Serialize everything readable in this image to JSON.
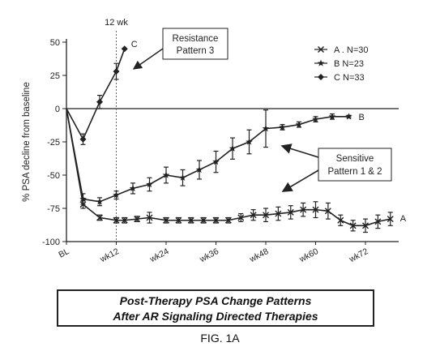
{
  "chart_data": {
    "type": "line",
    "ylabel": "% PSA decline from baseline",
    "xlabel": "",
    "ylim": [
      -100,
      50
    ],
    "yticks": [
      50,
      25,
      0,
      -25,
      -50,
      -75,
      -100
    ],
    "x_tick_labels": [
      {
        "x": 0,
        "label": "BL"
      },
      {
        "x": 12,
        "label": "wk12"
      },
      {
        "x": 24,
        "label": "wk24"
      },
      {
        "x": 36,
        "label": "wk36"
      },
      {
        "x": 48,
        "label": "wk48"
      },
      {
        "x": 60,
        "label": "wk60"
      },
      {
        "x": 72,
        "label": "wk72"
      }
    ],
    "xlim": [
      0,
      80
    ],
    "legend_position": "top-right",
    "reference_line": {
      "x": 12,
      "label": "12 wk"
    },
    "series": [
      {
        "name": "A . N=30",
        "end_label": "A",
        "marker": "x",
        "points": [
          {
            "x": 0,
            "y": 0,
            "err": 0
          },
          {
            "x": 4,
            "y": -72,
            "err": 3
          },
          {
            "x": 8,
            "y": -82,
            "err": 2
          },
          {
            "x": 12,
            "y": -84,
            "err": 2
          },
          {
            "x": 14,
            "y": -84,
            "err": 2
          },
          {
            "x": 17,
            "y": -83,
            "err": 2
          },
          {
            "x": 20,
            "y": -82,
            "err": 4
          },
          {
            "x": 24,
            "y": -84,
            "err": 2
          },
          {
            "x": 27,
            "y": -84,
            "err": 2
          },
          {
            "x": 30,
            "y": -84,
            "err": 2
          },
          {
            "x": 33,
            "y": -84,
            "err": 2
          },
          {
            "x": 36,
            "y": -84,
            "err": 2
          },
          {
            "x": 39,
            "y": -84,
            "err": 2
          },
          {
            "x": 42,
            "y": -82,
            "err": 3
          },
          {
            "x": 45,
            "y": -80,
            "err": 4
          },
          {
            "x": 48,
            "y": -80,
            "err": 5
          },
          {
            "x": 51,
            "y": -79,
            "err": 5
          },
          {
            "x": 54,
            "y": -78,
            "err": 5
          },
          {
            "x": 57,
            "y": -76,
            "err": 5
          },
          {
            "x": 60,
            "y": -76,
            "err": 6
          },
          {
            "x": 63,
            "y": -77,
            "err": 6
          },
          {
            "x": 66,
            "y": -84,
            "err": 4
          },
          {
            "x": 69,
            "y": -88,
            "err": 4
          },
          {
            "x": 72,
            "y": -88,
            "err": 5
          },
          {
            "x": 75,
            "y": -85,
            "err": 5
          },
          {
            "x": 78,
            "y": -83,
            "err": 5
          }
        ]
      },
      {
        "name": "B    N=23",
        "end_label": "B",
        "marker": "star",
        "points": [
          {
            "x": 0,
            "y": 0,
            "err": 0
          },
          {
            "x": 4,
            "y": -68,
            "err": 4
          },
          {
            "x": 8,
            "y": -70,
            "err": 3
          },
          {
            "x": 12,
            "y": -65,
            "err": 3
          },
          {
            "x": 16,
            "y": -60,
            "err": 4
          },
          {
            "x": 20,
            "y": -57,
            "err": 5
          },
          {
            "x": 24,
            "y": -50,
            "err": 6
          },
          {
            "x": 28,
            "y": -52,
            "err": 6
          },
          {
            "x": 32,
            "y": -46,
            "err": 7
          },
          {
            "x": 36,
            "y": -40,
            "err": 8
          },
          {
            "x": 40,
            "y": -30,
            "err": 8
          },
          {
            "x": 44,
            "y": -25,
            "err": 9
          },
          {
            "x": 48,
            "y": -15,
            "err": 14
          },
          {
            "x": 52,
            "y": -14,
            "err": 2
          },
          {
            "x": 56,
            "y": -12,
            "err": 2
          },
          {
            "x": 60,
            "y": -8,
            "err": 2
          },
          {
            "x": 64,
            "y": -6,
            "err": 2
          },
          {
            "x": 68,
            "y": -6,
            "err": 1
          }
        ]
      },
      {
        "name": "C    N=33",
        "end_label": "C",
        "marker": "diamond",
        "points": [
          {
            "x": 0,
            "y": 0,
            "err": 0
          },
          {
            "x": 4,
            "y": -23,
            "err": 4
          },
          {
            "x": 8,
            "y": 5,
            "err": 5
          },
          {
            "x": 12,
            "y": 28,
            "err": 6
          },
          {
            "x": 14,
            "y": 45,
            "err": 0
          }
        ]
      }
    ],
    "annotations": [
      {
        "text_lines": [
          "Resistance",
          "Pattern 3"
        ],
        "boxed": true
      },
      {
        "text_lines": [
          "Sensitive",
          "Pattern 1 & 2"
        ],
        "boxed": true
      }
    ],
    "caption_lines": [
      "Post-Therapy PSA Change Patterns",
      "After AR Signaling Directed Therapies"
    ],
    "figure_label": "FIG. 1A",
    "colors": {
      "line": "#222222",
      "grid": "#666666",
      "background": "#ffffff"
    }
  }
}
